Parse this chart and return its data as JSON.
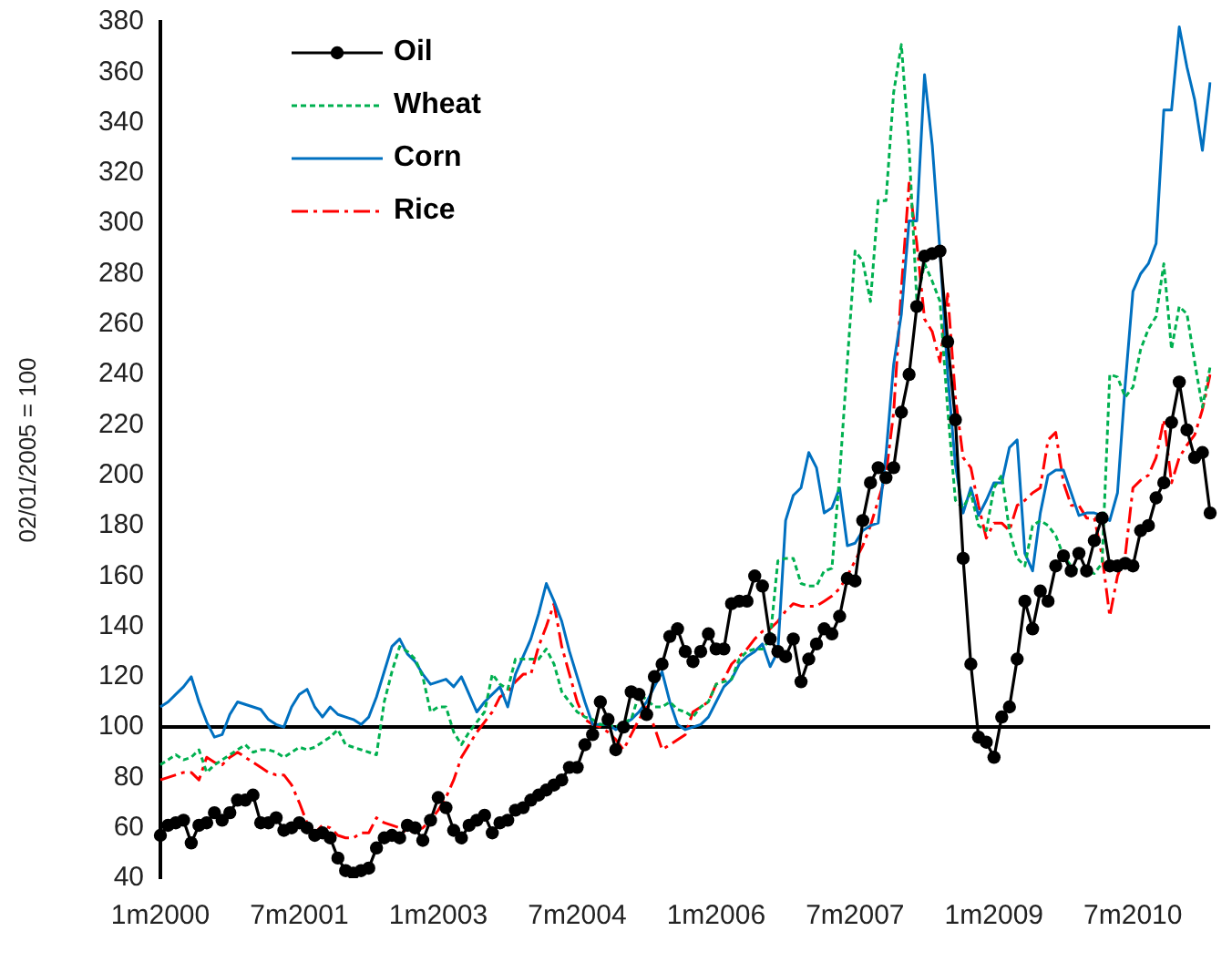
{
  "chart_data": {
    "type": "line",
    "ylabel": "02/01/2005 = 100",
    "categories": [
      "1m2000",
      null,
      null,
      null,
      null,
      null,
      null,
      null,
      null,
      null,
      null,
      null,
      null,
      null,
      null,
      null,
      null,
      null,
      "7m2001",
      null,
      null,
      null,
      null,
      null,
      null,
      null,
      null,
      null,
      null,
      null,
      null,
      null,
      null,
      null,
      null,
      null,
      "1m2003",
      null,
      null,
      null,
      null,
      null,
      null,
      null,
      null,
      null,
      null,
      null,
      null,
      null,
      null,
      null,
      null,
      null,
      "7m2004",
      null,
      null,
      null,
      null,
      null,
      null,
      null,
      null,
      null,
      null,
      null,
      null,
      null,
      null,
      null,
      null,
      null,
      "1m2006",
      null,
      null,
      null,
      null,
      null,
      null,
      null,
      null,
      null,
      null,
      null,
      null,
      null,
      null,
      null,
      null,
      null,
      "7m2007",
      null,
      null,
      null,
      null,
      null,
      null,
      null,
      null,
      null,
      null,
      null,
      null,
      null,
      null,
      null,
      null,
      null,
      "1m2009",
      null,
      null,
      null,
      null,
      null,
      null,
      null,
      null,
      null,
      null,
      null,
      null,
      null,
      null,
      null,
      null,
      null,
      "7m2010",
      null,
      null,
      null,
      null,
      null,
      null,
      null,
      null,
      null,
      null
    ],
    "series": [
      {
        "name": "Oil",
        "color": "#000000",
        "marker": "circle",
        "line_style": "solid",
        "values": [
          57,
          61,
          62,
          63,
          54,
          61,
          62,
          66,
          63,
          66,
          71,
          71,
          73,
          62,
          62,
          64,
          59,
          60,
          62,
          60,
          57,
          58,
          56,
          48,
          43,
          42,
          43,
          44,
          52,
          56,
          57,
          56,
          61,
          60,
          55,
          63,
          72,
          68,
          59,
          56,
          61,
          63,
          65,
          58,
          62,
          63,
          67,
          68,
          71,
          73,
          75,
          77,
          79,
          84,
          84,
          93,
          97,
          110,
          103,
          91,
          100,
          114,
          113,
          105,
          120,
          125,
          136,
          139,
          130,
          126,
          130,
          137,
          131,
          131,
          149,
          150,
          150,
          160,
          156,
          135,
          130,
          128,
          135,
          118,
          127,
          133,
          139,
          137,
          144,
          159,
          158,
          182,
          197,
          203,
          199,
          203,
          225,
          240,
          267,
          287,
          288,
          289,
          253,
          222,
          167,
          125,
          96,
          94,
          88,
          104,
          108,
          127,
          150,
          139,
          154,
          150,
          164,
          168,
          162,
          169,
          162,
          174,
          183,
          164,
          164,
          165,
          164,
          178,
          180,
          191,
          197,
          221,
          237,
          218,
          207,
          209,
          185
        ]
      },
      {
        "name": "Wheat",
        "color": "#00b050",
        "marker": "none",
        "line_style": "dotted",
        "values": [
          85,
          87,
          89,
          87,
          88,
          91,
          82,
          85,
          87,
          89,
          91,
          93,
          90,
          91,
          91,
          90,
          88,
          90,
          92,
          91,
          92,
          94,
          96,
          99,
          93,
          92,
          91,
          90,
          89,
          110,
          122,
          132,
          130,
          127,
          120,
          106,
          108,
          108,
          98,
          93,
          98,
          102,
          106,
          121,
          117,
          115,
          127,
          127,
          127,
          127,
          131,
          125,
          114,
          110,
          106,
          104,
          103,
          101,
          101,
          100,
          102,
          103,
          113,
          111,
          108,
          108,
          110,
          107,
          106,
          104,
          108,
          110,
          117,
          118,
          119,
          127,
          130,
          131,
          131,
          135,
          166,
          167,
          167,
          157,
          156,
          156,
          162,
          163,
          200,
          245,
          289,
          285,
          269,
          309,
          309,
          352,
          371,
          330,
          269,
          284,
          277,
          269,
          226,
          190,
          187,
          193,
          180,
          178,
          195,
          200,
          178,
          167,
          164,
          180,
          182,
          180,
          176,
          168,
          164,
          162,
          162,
          161,
          165,
          240,
          239,
          231,
          235,
          250,
          258,
          263,
          284,
          250,
          267,
          264,
          245,
          227,
          243
        ]
      },
      {
        "name": "Corn",
        "color": "#0070c0",
        "marker": "none",
        "line_style": "solid",
        "values": [
          108,
          110,
          113,
          116,
          120,
          110,
          102,
          96,
          97,
          105,
          110,
          109,
          108,
          107,
          103,
          101,
          100,
          108,
          113,
          115,
          108,
          104,
          108,
          105,
          104,
          103,
          101,
          104,
          112,
          122,
          132,
          135,
          129,
          126,
          121,
          117,
          118,
          119,
          116,
          120,
          113,
          106,
          110,
          113,
          116,
          108,
          121,
          128,
          135,
          145,
          157,
          150,
          142,
          130,
          120,
          110,
          101,
          101,
          101,
          99,
          101,
          103,
          106,
          110,
          116,
          122,
          110,
          101,
          99,
          100,
          101,
          104,
          110,
          116,
          119,
          125,
          128,
          130,
          133,
          124,
          130,
          182,
          192,
          195,
          209,
          203,
          185,
          187,
          195,
          172,
          173,
          178,
          180,
          181,
          208,
          244,
          264,
          301,
          301,
          359,
          331,
          289,
          240,
          204,
          185,
          195,
          184,
          190,
          197,
          197,
          211,
          214,
          169,
          162,
          185,
          200,
          202,
          202,
          193,
          184,
          185,
          185,
          184,
          182,
          193,
          236,
          273,
          280,
          284,
          292,
          345,
          345,
          378,
          362,
          349,
          329,
          356
        ]
      },
      {
        "name": "Rice",
        "color": "#ff0000",
        "marker": "none",
        "line_style": "dashed",
        "values": [
          79,
          80,
          81,
          82,
          82,
          79,
          88,
          86,
          85,
          88,
          90,
          88,
          86,
          84,
          82,
          81,
          81,
          77,
          70,
          62,
          58,
          61,
          60,
          57,
          56,
          56,
          58,
          58,
          64,
          62,
          61,
          60,
          58,
          59,
          60,
          63,
          67,
          72,
          79,
          88,
          93,
          98,
          102,
          106,
          112,
          114,
          118,
          121,
          121,
          132,
          140,
          149,
          132,
          121,
          110,
          103,
          101,
          100,
          98,
          95,
          91,
          97,
          103,
          108,
          100,
          91,
          93,
          95,
          97,
          106,
          108,
          110,
          117,
          119,
          125,
          128,
          131,
          135,
          138,
          139,
          142,
          146,
          149,
          148,
          148,
          148,
          150,
          152,
          155,
          160,
          166,
          172,
          180,
          190,
          200,
          225,
          274,
          316,
          292,
          262,
          257,
          245,
          272,
          231,
          207,
          203,
          188,
          175,
          181,
          181,
          178,
          188,
          190,
          193,
          195,
          214,
          217,
          197,
          188,
          188,
          183,
          183,
          168,
          144,
          160,
          168,
          195,
          198,
          200,
          207,
          222,
          197,
          207,
          212,
          216,
          226,
          240
        ]
      }
    ],
    "ylim": [
      40,
      380
    ],
    "yticks": [
      40,
      60,
      80,
      100,
      120,
      140,
      160,
      180,
      200,
      220,
      240,
      260,
      280,
      300,
      320,
      340,
      360,
      380
    ],
    "grid": false,
    "legend": "top left",
    "ref_lines": [
      {
        "axis": "y",
        "value": 100,
        "color": "#000000"
      }
    ]
  }
}
